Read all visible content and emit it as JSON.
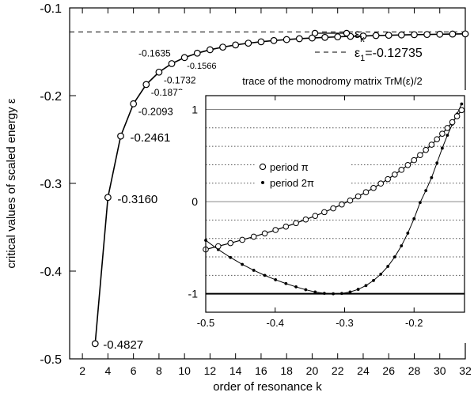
{
  "chart_data": [
    {
      "type": "line",
      "xlabel": "order of resonance k",
      "ylabel": "critical values of scaled energy ε",
      "xlim": [
        1,
        32
      ],
      "ylim": [
        -0.5,
        -0.1
      ],
      "xticks": [
        2,
        4,
        6,
        8,
        10,
        12,
        14,
        16,
        18,
        20,
        22,
        24,
        26,
        28,
        30,
        32
      ],
      "yticks": [
        -0.5,
        -0.4,
        -0.3,
        -0.2,
        -0.1
      ],
      "ytick_labels": [
        "-0.5",
        "-0.4",
        "-0.3",
        "-0.2",
        "-0.1"
      ],
      "grid": false,
      "legend": {
        "placement": "top-right",
        "series_label": "ε",
        "series_label_sub": "k",
        "limit_label": "ε",
        "limit_label_sub": "1",
        "limit_label_value": "=-0.12735"
      },
      "series": [
        {
          "name": "εk",
          "x": [
            3,
            4,
            5,
            6,
            7,
            8,
            9,
            10,
            11,
            12,
            13,
            14,
            15,
            16,
            17,
            18,
            19,
            20,
            21,
            22,
            23,
            24,
            25,
            26,
            27,
            28,
            29,
            30,
            31,
            32
          ],
          "values": [
            -0.4827,
            -0.316,
            -0.2461,
            -0.2093,
            -0.1873,
            -0.1732,
            -0.1635,
            -0.1566,
            -0.1516,
            -0.1477,
            -0.1447,
            -0.1422,
            -0.1402,
            -0.1386,
            -0.1372,
            -0.1361,
            -0.1351,
            -0.1343,
            -0.1336,
            -0.133,
            -0.1324,
            -0.132,
            -0.1315,
            -0.1312,
            -0.1308,
            -0.1305,
            -0.1303,
            -0.13,
            -0.1298,
            -0.1296
          ]
        }
      ],
      "limit_line": {
        "value": -0.12735
      },
      "annotations": [
        {
          "x": 3,
          "y": -0.4827,
          "text": "-0.4827"
        },
        {
          "x": 4,
          "y": -0.316,
          "text": "-0.3160"
        },
        {
          "x": 5,
          "y": -0.2461,
          "text": "-0.2461"
        },
        {
          "x": 6,
          "y": -0.2093,
          "text": "-0.2093"
        },
        {
          "x": 7,
          "y": -0.1873,
          "text": "-0.1873"
        },
        {
          "x": 8,
          "y": -0.1732,
          "text": "-0.1732"
        },
        {
          "x": 9,
          "y": -0.1635,
          "text": "-0.1635"
        },
        {
          "x": 10,
          "y": -0.1566,
          "text": "-0.1566"
        }
      ]
    },
    {
      "type": "line",
      "title": "trace of the monodromy matrix TrM(ε)/2",
      "xlim": [
        -0.5,
        -0.12735
      ],
      "ylim": [
        -1.2,
        1.15
      ],
      "xticks": [
        -0.5,
        -0.4,
        -0.3,
        -0.2
      ],
      "xtick_labels": [
        "-0.5",
        "-0.4",
        "-0.3",
        "-0.2"
      ],
      "yticks": [
        -1,
        0,
        1
      ],
      "ytick_labels": [
        "-1",
        "0",
        "1"
      ],
      "solid_hlines": [
        1,
        0
      ],
      "thick_hlines": [
        -1
      ],
      "dotted_hlines": [
        0.8,
        0.6,
        0.4,
        0.2,
        -0.2,
        -0.4,
        -0.6,
        -0.8
      ],
      "legend": {
        "placement": "top-left"
      },
      "series": [
        {
          "name": "period π",
          "marker": "open-circle",
          "x": [
            -0.5,
            -0.482,
            -0.4644,
            -0.4474,
            -0.4309,
            -0.415,
            -0.3995,
            -0.3845,
            -0.37,
            -0.356,
            -0.3424,
            -0.3292,
            -0.3164,
            -0.3041,
            -0.2921,
            -0.2805,
            -0.2693,
            -0.2584,
            -0.2479,
            -0.2377,
            -0.2278,
            -0.2182,
            -0.209,
            -0.2,
            -0.1913,
            -0.183,
            -0.1748,
            -0.167,
            -0.1594,
            -0.152,
            -0.1449,
            -0.1381,
            -0.1315
          ],
          "values": [
            -0.519,
            -0.484,
            -0.45,
            -0.415,
            -0.38,
            -0.345,
            -0.308,
            -0.271,
            -0.233,
            -0.194,
            -0.155,
            -0.114,
            -0.073,
            -0.031,
            0.012,
            0.057,
            0.102,
            0.148,
            0.196,
            0.244,
            0.294,
            0.345,
            0.397,
            0.45,
            0.505,
            0.561,
            0.618,
            0.677,
            0.737,
            0.799,
            0.862,
            0.927,
            0.993
          ]
        },
        {
          "name": "period 2π",
          "marker": "filled-dot",
          "x": [
            -0.5,
            -0.482,
            -0.4644,
            -0.4474,
            -0.4309,
            -0.415,
            -0.3995,
            -0.3845,
            -0.37,
            -0.356,
            -0.3424,
            -0.3292,
            -0.3164,
            -0.3041,
            -0.2921,
            -0.2805,
            -0.2693,
            -0.2584,
            -0.2479,
            -0.2377,
            -0.2278,
            -0.2182,
            -0.209,
            -0.2,
            -0.1913,
            -0.183,
            -0.1748,
            -0.167,
            -0.1594,
            -0.152,
            -0.1449,
            -0.1381,
            -0.1315
          ],
          "values": [
            -0.42,
            -0.52,
            -0.606,
            -0.681,
            -0.745,
            -0.8,
            -0.848,
            -0.889,
            -0.925,
            -0.956,
            -0.98,
            -0.995,
            -1.0,
            -0.996,
            -0.98,
            -0.952,
            -0.911,
            -0.856,
            -0.787,
            -0.703,
            -0.6,
            -0.48,
            -0.342,
            -0.185,
            -0.01,
            0.12,
            0.26,
            0.42,
            0.58,
            0.72,
            0.84,
            0.95,
            1.06
          ]
        }
      ]
    }
  ]
}
